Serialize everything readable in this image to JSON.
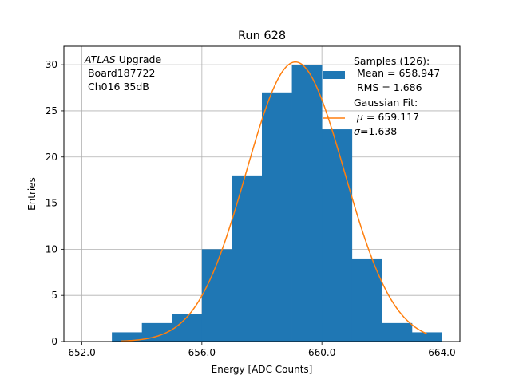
{
  "chart_data": {
    "type": "bar",
    "title": "Run 628",
    "xlabel": "Energy [ADC Counts]",
    "ylabel": "Entries",
    "xlim": [
      651.4,
      664.6
    ],
    "ylim": [
      0,
      32
    ],
    "xticks": [
      652.0,
      656.0,
      660.0,
      664.0
    ],
    "xtick_labels": [
      "652.0",
      "656.0",
      "660.0",
      "664.0"
    ],
    "yticks": [
      0,
      5,
      10,
      15,
      20,
      25,
      30
    ],
    "grid": true,
    "histogram": {
      "bin_edges": [
        653,
        654,
        655,
        656,
        657,
        658,
        659,
        660,
        661,
        662,
        663,
        664
      ],
      "counts": [
        1,
        2,
        3,
        10,
        18,
        27,
        30,
        23,
        9,
        2,
        1
      ],
      "color": "#1f77b4"
    },
    "fit": {
      "type": "gaussian",
      "mu": 659.117,
      "sigma": 1.638,
      "amplitude": 30.3,
      "x_range": [
        653.3,
        663.5
      ],
      "color": "#ff7f0e"
    },
    "annotation": {
      "line1_italic": "ATLAS",
      "line1_rest": " Upgrade",
      "line2": " Board187722",
      "line3": " Ch016 35dB"
    },
    "legend": {
      "position": "top-right",
      "samples_header": "Samples (126):",
      "samples_mean": " Mean = 658.947",
      "samples_rms": " RMS = 1.686",
      "fit_header": "Gaussian Fit:",
      "fit_mu_symbol": "μ",
      "fit_mu_text": " = 659.117",
      "fit_sigma_symbol": "σ",
      "fit_sigma_text": "=1.638"
    }
  }
}
